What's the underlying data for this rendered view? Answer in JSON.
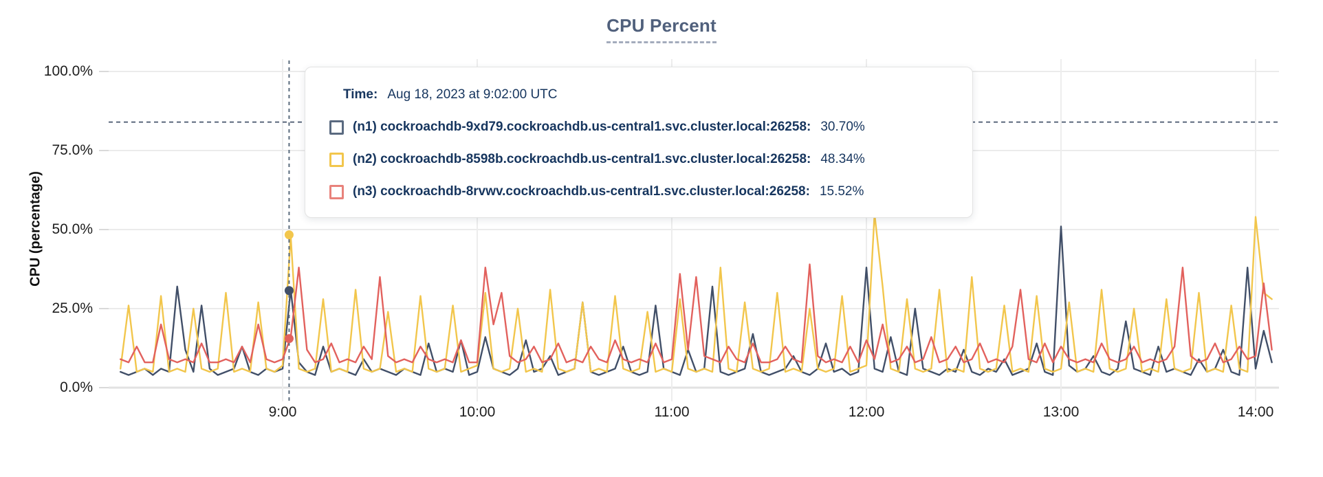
{
  "title": {
    "text": "CPU Percent"
  },
  "tooltip": {
    "time_label": "Time:",
    "time_value": "Aug 18, 2023 at 9:02:00 UTC",
    "series": [
      {
        "id": "n1",
        "label": "(n1) cockroachdb-9xd79.cockroachdb.us-central1.svc.cluster.local:26258:",
        "value": "30.70%"
      },
      {
        "id": "n2",
        "label": "(n2) cockroachdb-8598b.cockroachdb.us-central1.svc.cluster.local:26258:",
        "value": "48.34%"
      },
      {
        "id": "n3",
        "label": "(n3) cockroachdb-8rvwv.cockroachdb.us-central1.svc.cluster.local:26258:",
        "value": "15.52%"
      }
    ]
  },
  "colors": {
    "title": "#50607c",
    "tooltip_text": "#16355e",
    "threshold_line": "#44536b",
    "cursor_line": "#5a6b7d"
  },
  "chart_data": {
    "type": "line",
    "title": "CPU Percent",
    "xlabel": "",
    "ylabel": "CPU (percentage)",
    "ylim": [
      0,
      100
    ],
    "grid": true,
    "y_tick_values": [
      0,
      25,
      50,
      75,
      100
    ],
    "y_ticks": [
      "0.0%",
      "25.0%",
      "50.0%",
      "75.0%",
      "100.0%"
    ],
    "x_ticks": [
      "9:00",
      "10:00",
      "11:00",
      "12:00",
      "13:00",
      "14:00"
    ],
    "x_range_label": "8:10 to 14:05 UTC",
    "x_start_minutes": 490,
    "x_step_minutes": 2.5,
    "threshold_percent": 84,
    "threshold_color": "#44536b",
    "cursor": {
      "time_minutes": 542,
      "time_label": "9:02",
      "line_color": "#5a6b7d",
      "points": [
        {
          "series_index": 0,
          "value": 30.7
        },
        {
          "series_index": 1,
          "value": 48.34
        },
        {
          "series_index": 2,
          "value": 15.52
        }
      ]
    },
    "series": [
      {
        "id": "n1",
        "name": "(n1) cockroachdb-9xd79.cockroachdb.us-central1.svc.cluster.local:26258",
        "color": "#414f68",
        "icon_color": "#5a6a80",
        "values": [
          5,
          4,
          5,
          6,
          4,
          6,
          5,
          32,
          12,
          5,
          26,
          6,
          4,
          5,
          6,
          13,
          5,
          4,
          6,
          5,
          6,
          31,
          8,
          5,
          4,
          13,
          5,
          6,
          5,
          4,
          9,
          5,
          6,
          5,
          4,
          6,
          5,
          4,
          14,
          5,
          6,
          5,
          15,
          4,
          5,
          16,
          6,
          5,
          4,
          6,
          15,
          5,
          6,
          10,
          4,
          5,
          6,
          27,
          5,
          4,
          5,
          6,
          13,
          5,
          4,
          5,
          26,
          6,
          5,
          4,
          12,
          5,
          6,
          32,
          5,
          4,
          5,
          6,
          17,
          5,
          4,
          5,
          6,
          10,
          5,
          4,
          6,
          14,
          5,
          6,
          4,
          5,
          38,
          6,
          5,
          16,
          5,
          4,
          25,
          6,
          5,
          4,
          6,
          5,
          12,
          5,
          4,
          6,
          5,
          9,
          4,
          5,
          6,
          14,
          5,
          4,
          51,
          7,
          5,
          6,
          10,
          5,
          4,
          6,
          21,
          6,
          5,
          4,
          13,
          5,
          6,
          5,
          4,
          9,
          5,
          6,
          12,
          5,
          4,
          38,
          6,
          18,
          8
        ]
      },
      {
        "id": "n2",
        "name": "(n2) cockroachdb-8598b.cockroachdb.us-central1.svc.cluster.local:26258",
        "color": "#f2c64c",
        "icon_color": "#f2c64c",
        "values": [
          6,
          26,
          5,
          6,
          5,
          29,
          5,
          6,
          5,
          25,
          6,
          5,
          6,
          30,
          5,
          6,
          5,
          27,
          6,
          5,
          7,
          48,
          6,
          5,
          6,
          28,
          5,
          6,
          5,
          31,
          6,
          5,
          6,
          24,
          5,
          6,
          5,
          29,
          6,
          5,
          6,
          26,
          5,
          6,
          7,
          30,
          6,
          5,
          6,
          25,
          5,
          6,
          5,
          31,
          6,
          5,
          6,
          27,
          5,
          6,
          5,
          29,
          6,
          5,
          6,
          24,
          5,
          6,
          5,
          28,
          6,
          5,
          6,
          5,
          38,
          6,
          5,
          27,
          6,
          5,
          6,
          30,
          5,
          6,
          5,
          25,
          6,
          5,
          6,
          29,
          5,
          6,
          7,
          55,
          32,
          6,
          5,
          28,
          6,
          5,
          6,
          31,
          5,
          6,
          5,
          35,
          6,
          5,
          6,
          26,
          5,
          6,
          5,
          29,
          6,
          5,
          6,
          27,
          5,
          6,
          5,
          31,
          6,
          5,
          6,
          25,
          5,
          6,
          5,
          28,
          6,
          5,
          6,
          30,
          5,
          6,
          5,
          26,
          6,
          5,
          54,
          30,
          28
        ]
      },
      {
        "id": "n3",
        "name": "(n3) cockroachdb-8rvwv.cockroachdb.us-central1.svc.cluster.local:26258",
        "color": "#e2615d",
        "icon_color": "#e8827b",
        "values": [
          9,
          8,
          13,
          8,
          8,
          20,
          9,
          8,
          9,
          8,
          14,
          8,
          8,
          9,
          8,
          13,
          8,
          20,
          9,
          8,
          9,
          16,
          38,
          12,
          8,
          9,
          14,
          8,
          9,
          8,
          13,
          9,
          35,
          10,
          8,
          9,
          8,
          13,
          9,
          8,
          9,
          8,
          15,
          8,
          8,
          38,
          20,
          30,
          10,
          8,
          9,
          13,
          8,
          9,
          14,
          8,
          9,
          8,
          13,
          9,
          8,
          15,
          9,
          8,
          9,
          8,
          14,
          8,
          9,
          36,
          12,
          35,
          10,
          9,
          8,
          13,
          9,
          8,
          14,
          8,
          8,
          9,
          13,
          9,
          8,
          39,
          10,
          8,
          9,
          8,
          13,
          8,
          15,
          9,
          20,
          8,
          9,
          13,
          8,
          9,
          16,
          8,
          9,
          13,
          8,
          9,
          14,
          8,
          9,
          8,
          13,
          31,
          9,
          8,
          14,
          8,
          13,
          9,
          8,
          9,
          8,
          14,
          9,
          8,
          9,
          13,
          8,
          9,
          8,
          9,
          13,
          38,
          10,
          8,
          9,
          14,
          8,
          9,
          13,
          9,
          10,
          33,
          12
        ]
      }
    ]
  }
}
